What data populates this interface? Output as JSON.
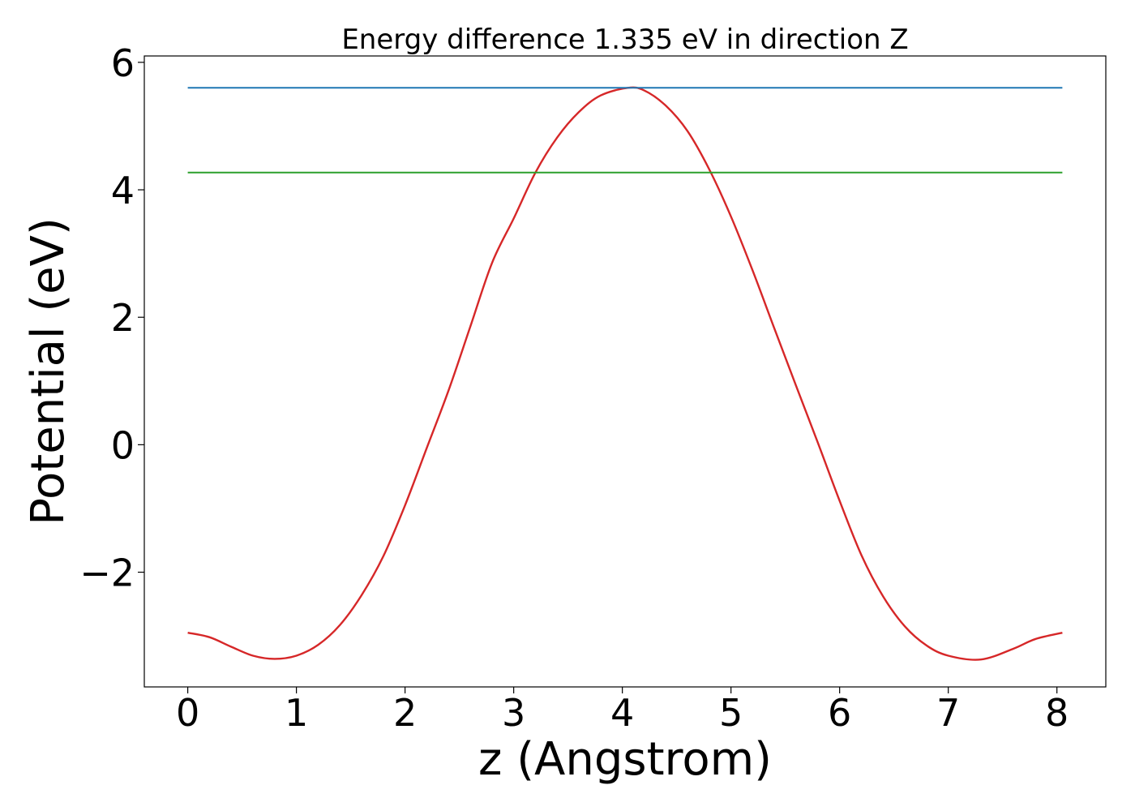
{
  "chart_data": {
    "type": "line",
    "title": "Energy difference 1.335 eV in direction Z",
    "xlabel": "z (Angstrom)",
    "ylabel": "Potential (eV)",
    "xlim": [
      -0.4,
      8.45
    ],
    "ylim": [
      -3.8,
      6.1
    ],
    "xticks": [
      0,
      1,
      2,
      3,
      4,
      5,
      6,
      7,
      8
    ],
    "xtick_labels": [
      "0",
      "1",
      "2",
      "3",
      "4",
      "5",
      "6",
      "7",
      "8"
    ],
    "yticks": [
      -2,
      0,
      2,
      4,
      6
    ],
    "ytick_labels": [
      "−2",
      "0",
      "2",
      "4",
      "6"
    ],
    "grid": false,
    "series": [
      {
        "kind": "curve",
        "color": "#d62728",
        "x": [
          0,
          0.2,
          0.4,
          0.6,
          0.8,
          1.0,
          1.2,
          1.4,
          1.6,
          1.8,
          2.0,
          2.2,
          2.4,
          2.6,
          2.8,
          3.0,
          3.2,
          3.4,
          3.6,
          3.8,
          4.05,
          4.2,
          4.4,
          4.6,
          4.8,
          5.0,
          5.2,
          5.4,
          5.6,
          5.8,
          6.0,
          6.2,
          6.4,
          6.6,
          6.8,
          7.0,
          7.3,
          7.6,
          7.8,
          8.05
        ],
        "y": [
          -2.95,
          -3.02,
          -3.17,
          -3.31,
          -3.36,
          -3.31,
          -3.14,
          -2.83,
          -2.36,
          -1.75,
          -0.95,
          -0.05,
          0.85,
          1.85,
          2.85,
          3.55,
          4.27,
          4.82,
          5.22,
          5.48,
          5.6,
          5.56,
          5.32,
          4.92,
          4.32,
          3.58,
          2.73,
          1.82,
          0.92,
          0.03,
          -0.88,
          -1.73,
          -2.38,
          -2.85,
          -3.15,
          -3.31,
          -3.37,
          -3.2,
          -3.05,
          -2.95
        ]
      },
      {
        "kind": "hline",
        "color": "#1f77b4",
        "y": 5.6,
        "x_range": [
          0,
          8.05
        ]
      },
      {
        "kind": "hline",
        "color": "#2ca02c",
        "y": 4.27,
        "x_range": [
          0,
          8.05
        ]
      }
    ]
  }
}
